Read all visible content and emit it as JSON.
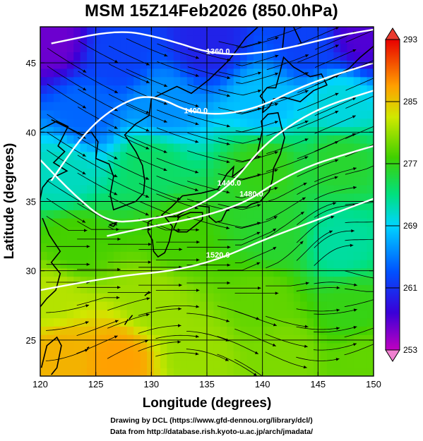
{
  "title": "MSM 15Z14Feb2026 (850.0hPa)",
  "xlabel": "Longitude (degrees)",
  "ylabel": "Latitude  (degrees)",
  "x_ticks": [
    "120",
    "125",
    "130",
    "135",
    "140",
    "145",
    "150"
  ],
  "y_ticks": [
    "25",
    "30",
    "35",
    "40",
    "45"
  ],
  "colorbar": {
    "ticks": [
      "293",
      "285",
      "277",
      "269",
      "261",
      "253"
    ],
    "min": 253,
    "max": 293
  },
  "contour_labels": [
    "1360.0",
    "1400.0",
    "1440.0",
    "1480.0",
    "1520.0"
  ],
  "credits": {
    "line1": "Drawing by DCL (https://www.gfd-dennou.org/library/dcl/)",
    "line2": "Data from http://database.rish.kyoto-u.ac.jp/arch/jmadata/"
  },
  "chart_data": {
    "type": "heatmap",
    "title": "MSM 15Z14Feb2026 (850.0hPa)",
    "xlabel": "Longitude (degrees)",
    "ylabel": "Latitude  (degrees)",
    "xlim": [
      120,
      150
    ],
    "ylim": [
      22.4,
      47.6
    ],
    "color_range": [
      253,
      293
    ],
    "colormap": "rainbow (magenta-blue-cyan-green-yellow-orange-red)",
    "overlays": [
      "coastlines",
      "streamlines (wind)",
      "geopotential height contours (white)"
    ],
    "contours": [
      {
        "label": "1360.0",
        "lon": [
          121,
          127,
          131,
          136,
          141,
          147,
          150
        ],
        "lat": [
          46.4,
          47.4,
          46.8,
          45.5,
          45.8,
          47.0,
          47.4
        ]
      },
      {
        "label": "1400.0",
        "lon": [
          121,
          124,
          127,
          130,
          134,
          139,
          144,
          150
        ],
        "lat": [
          36.5,
          40.0,
          42.0,
          42.8,
          41.2,
          41.5,
          43.5,
          45.0
        ]
      },
      {
        "label": "1440.0",
        "lon": [
          120,
          123,
          126,
          129,
          133,
          137,
          140,
          143,
          146,
          150
        ],
        "lat": [
          38.0,
          35.5,
          33.5,
          33.6,
          34.2,
          36.0,
          39.0,
          40.8,
          42.0,
          43.0
        ]
      },
      {
        "label": "1480.0",
        "lon": [
          126,
          130,
          134,
          137,
          139,
          141,
          144,
          147,
          150
        ],
        "lat": [
          32.5,
          33.2,
          33.8,
          34.5,
          35.2,
          36.3,
          37.5,
          38.3,
          39.0
        ]
      },
      {
        "label": "1520.0",
        "lon": [
          120,
          124,
          128,
          132,
          136,
          140,
          144,
          148,
          150
        ],
        "lat": [
          28.6,
          29.2,
          29.7,
          30.0,
          30.8,
          32.2,
          33.4,
          34.6,
          35.2
        ]
      }
    ],
    "temperature_field_samples": [
      {
        "lon": 121,
        "lat": 46.5,
        "value": 256
      },
      {
        "lon": 127,
        "lat": 45.5,
        "value": 262
      },
      {
        "lon": 135,
        "lat": 46.5,
        "value": 260
      },
      {
        "lon": 144,
        "lat": 46.5,
        "value": 262
      },
      {
        "lon": 149,
        "lat": 47.0,
        "value": 257
      },
      {
        "lon": 124,
        "lat": 41.5,
        "value": 264
      },
      {
        "lon": 131,
        "lat": 42.0,
        "value": 266
      },
      {
        "lon": 140,
        "lat": 42.0,
        "value": 268
      },
      {
        "lon": 147,
        "lat": 42.0,
        "value": 270
      },
      {
        "lon": 122,
        "lat": 37.0,
        "value": 271
      },
      {
        "lon": 130,
        "lat": 37.5,
        "value": 274
      },
      {
        "lon": 140,
        "lat": 37.5,
        "value": 277
      },
      {
        "lon": 147,
        "lat": 38.0,
        "value": 276
      },
      {
        "lon": 123,
        "lat": 32.0,
        "value": 278
      },
      {
        "lon": 132,
        "lat": 32.5,
        "value": 278
      },
      {
        "lon": 141,
        "lat": 32.5,
        "value": 276
      },
      {
        "lon": 147,
        "lat": 32.0,
        "value": 272
      },
      {
        "lon": 121,
        "lat": 28.0,
        "value": 282
      },
      {
        "lon": 130,
        "lat": 28.0,
        "value": 281
      },
      {
        "lon": 140,
        "lat": 28.0,
        "value": 279
      },
      {
        "lon": 148,
        "lat": 27.0,
        "value": 277
      },
      {
        "lon": 122,
        "lat": 24.0,
        "value": 286
      },
      {
        "lon": 127,
        "lat": 23.5,
        "value": 287
      },
      {
        "lon": 134,
        "lat": 24.0,
        "value": 281
      },
      {
        "lon": 142,
        "lat": 24.0,
        "value": 280
      },
      {
        "lon": 149,
        "lat": 24.0,
        "value": 279
      }
    ]
  }
}
